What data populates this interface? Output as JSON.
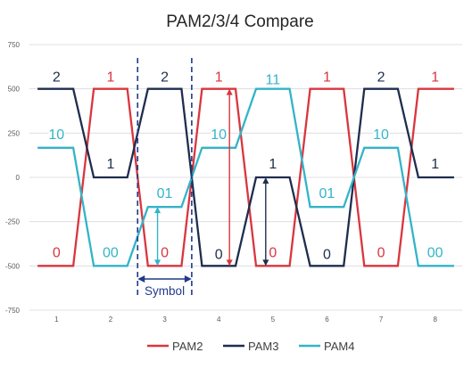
{
  "chart_data": {
    "type": "line",
    "title": "PAM2/3/4 Compare",
    "xlabel": "",
    "ylabel": "",
    "x_ticks": [
      "1",
      "2",
      "3",
      "4",
      "5",
      "6",
      "7",
      "8"
    ],
    "y_ticks": [
      "750",
      "500",
      "250",
      "0",
      "-250",
      "-500",
      "-750"
    ],
    "ylim": [
      -750,
      750
    ],
    "grid": "horizontal",
    "legend": "bottom",
    "series": [
      {
        "name": "PAM2",
        "color": "#d9363e",
        "symbols": [
          "0",
          "1",
          "0",
          "1",
          "0",
          "1",
          "0",
          "1"
        ],
        "values": [
          -500,
          500,
          -500,
          500,
          -500,
          500,
          -500,
          500
        ]
      },
      {
        "name": "PAM3",
        "color": "#1f2d4e",
        "symbols": [
          "2",
          "1",
          "2",
          "0",
          "1",
          "0",
          "2",
          "1"
        ],
        "values": [
          500,
          0,
          500,
          -500,
          0,
          -500,
          500,
          0
        ]
      },
      {
        "name": "PAM4",
        "color": "#33b4c8",
        "symbols": [
          "10",
          "00",
          "01",
          "10",
          "11",
          "01",
          "10",
          "00"
        ],
        "values": [
          167,
          -500,
          -167,
          167,
          500,
          -167,
          167,
          -500
        ]
      }
    ],
    "annotations": {
      "symbol_label": "Symbol"
    }
  }
}
